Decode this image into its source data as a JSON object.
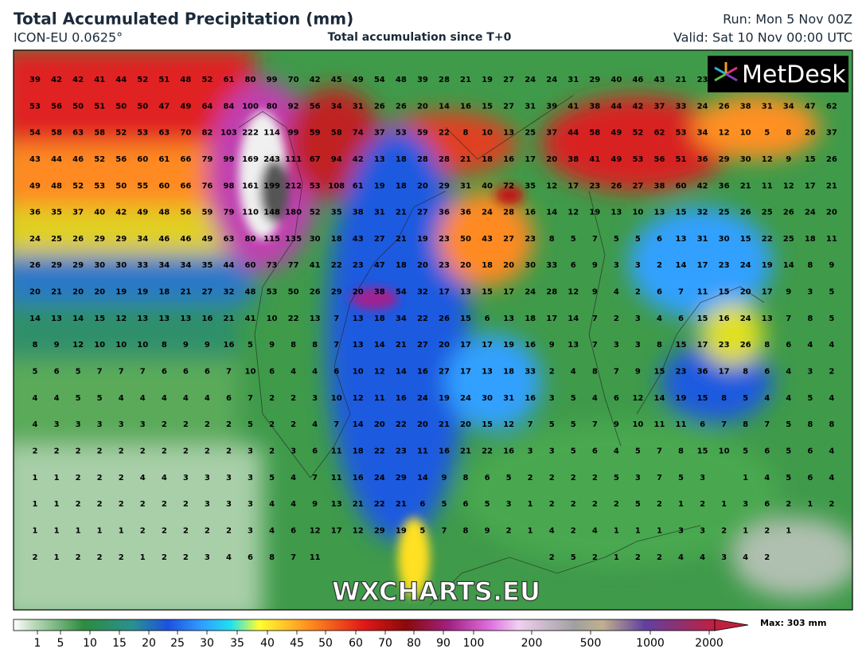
{
  "header": {
    "title": "Total Accumulated Precipitation (mm)",
    "model": "ICON-EU 0.0625°",
    "subtitle": "Total accumulation since T+0",
    "run": "Run: Mon 5 Nov 00Z",
    "valid": "Valid: Sat 10 Nov 00:00 UTC"
  },
  "logo": "MetDesk",
  "watermark": "WXCHARTS.EU",
  "colorbar": {
    "labels": [
      1,
      5,
      10,
      15,
      20,
      25,
      30,
      35,
      40,
      45,
      50,
      60,
      70,
      80,
      90,
      100,
      200,
      500,
      1000,
      2000
    ],
    "max_label": "Max: 303 mm"
  },
  "grid_values": [
    [
      39,
      42,
      42,
      41,
      44,
      52,
      51,
      48,
      52,
      61,
      80,
      99,
      70,
      42,
      45,
      49,
      54,
      48,
      39,
      28,
      21,
      19,
      27,
      24,
      24,
      31,
      29,
      40,
      46,
      43,
      21,
      23,
      null,
      null,
      null,
      null,
      null,
      null
    ],
    [
      53,
      56,
      50,
      51,
      50,
      50,
      47,
      49,
      64,
      84,
      100,
      80,
      92,
      56,
      34,
      31,
      26,
      26,
      20,
      14,
      16,
      15,
      27,
      31,
      39,
      41,
      38,
      44,
      42,
      37,
      33,
      24,
      26,
      38,
      31,
      34,
      47,
      62
    ],
    [
      54,
      58,
      63,
      58,
      52,
      53,
      63,
      70,
      82,
      103,
      222,
      114,
      99,
      59,
      58,
      74,
      37,
      53,
      59,
      22,
      8,
      10,
      13,
      25,
      37,
      44,
      58,
      49,
      52,
      62,
      53,
      34,
      12,
      10,
      5,
      8,
      26,
      37
    ],
    [
      43,
      44,
      46,
      52,
      56,
      60,
      61,
      66,
      79,
      99,
      169,
      243,
      111,
      67,
      94,
      42,
      13,
      18,
      28,
      28,
      21,
      18,
      16,
      17,
      20,
      38,
      41,
      49,
      53,
      56,
      51,
      36,
      29,
      30,
      12,
      9,
      15,
      26
    ],
    [
      49,
      48,
      52,
      53,
      50,
      55,
      60,
      66,
      76,
      98,
      161,
      199,
      212,
      53,
      108,
      61,
      19,
      18,
      20,
      29,
      31,
      40,
      72,
      35,
      12,
      17,
      23,
      26,
      27,
      38,
      60,
      42,
      36,
      21,
      11,
      12,
      17,
      21
    ],
    [
      36,
      35,
      37,
      40,
      42,
      49,
      48,
      56,
      59,
      79,
      110,
      148,
      180,
      52,
      35,
      38,
      31,
      21,
      27,
      36,
      36,
      24,
      28,
      16,
      14,
      12,
      19,
      13,
      10,
      13,
      15,
      32,
      25,
      26,
      25,
      26,
      24,
      20
    ],
    [
      24,
      25,
      26,
      29,
      29,
      34,
      46,
      46,
      49,
      63,
      80,
      115,
      135,
      30,
      18,
      43,
      27,
      21,
      19,
      23,
      50,
      43,
      27,
      23,
      8,
      5,
      7,
      5,
      5,
      6,
      13,
      31,
      30,
      15,
      22,
      25,
      18,
      11
    ],
    [
      26,
      29,
      29,
      30,
      30,
      33,
      34,
      34,
      35,
      44,
      60,
      73,
      77,
      41,
      22,
      23,
      47,
      18,
      20,
      23,
      20,
      18,
      20,
      30,
      33,
      6,
      9,
      3,
      3,
      2,
      14,
      17,
      23,
      24,
      19,
      14,
      8,
      9
    ],
    [
      20,
      21,
      20,
      20,
      19,
      19,
      18,
      21,
      27,
      32,
      48,
      53,
      50,
      26,
      29,
      20,
      38,
      54,
      32,
      17,
      13,
      15,
      17,
      24,
      28,
      12,
      9,
      4,
      2,
      6,
      7,
      11,
      15,
      20,
      17,
      9,
      3,
      5
    ],
    [
      14,
      13,
      14,
      15,
      12,
      13,
      13,
      13,
      16,
      21,
      41,
      10,
      22,
      13,
      7,
      13,
      18,
      34,
      22,
      26,
      15,
      6,
      13,
      18,
      17,
      14,
      7,
      2,
      3,
      4,
      6,
      15,
      16,
      24,
      13,
      7,
      8,
      5
    ],
    [
      8,
      9,
      12,
      10,
      10,
      10,
      8,
      9,
      9,
      16,
      5,
      9,
      8,
      8,
      7,
      13,
      14,
      21,
      27,
      20,
      17,
      17,
      19,
      16,
      9,
      13,
      7,
      3,
      3,
      8,
      15,
      17,
      23,
      26,
      8,
      6,
      4,
      4
    ],
    [
      5,
      6,
      5,
      7,
      7,
      7,
      6,
      6,
      6,
      7,
      10,
      6,
      4,
      4,
      6,
      10,
      12,
      14,
      16,
      27,
      17,
      13,
      18,
      33,
      2,
      4,
      8,
      7,
      9,
      15,
      23,
      36,
      17,
      8,
      6,
      4,
      3,
      2
    ],
    [
      4,
      4,
      5,
      5,
      4,
      4,
      4,
      4,
      4,
      6,
      7,
      2,
      2,
      3,
      10,
      12,
      11,
      16,
      24,
      19,
      24,
      30,
      31,
      16,
      3,
      5,
      4,
      6,
      12,
      14,
      19,
      15,
      8,
      5,
      4,
      4,
      5,
      4
    ],
    [
      4,
      3,
      3,
      3,
      3,
      3,
      2,
      2,
      2,
      2,
      5,
      2,
      2,
      4,
      7,
      14,
      20,
      22,
      20,
      21,
      20,
      15,
      12,
      7,
      5,
      5,
      7,
      9,
      10,
      11,
      11,
      6,
      7,
      8,
      7,
      5,
      8,
      8
    ],
    [
      2,
      2,
      2,
      2,
      2,
      2,
      2,
      2,
      2,
      2,
      3,
      2,
      3,
      6,
      11,
      18,
      22,
      23,
      11,
      16,
      21,
      22,
      16,
      3,
      3,
      5,
      6,
      4,
      5,
      7,
      8,
      15,
      10,
      5,
      6,
      5,
      6,
      4
    ],
    [
      1,
      1,
      2,
      2,
      2,
      4,
      4,
      3,
      3,
      3,
      3,
      5,
      4,
      7,
      11,
      16,
      24,
      29,
      14,
      9,
      8,
      6,
      5,
      2,
      2,
      2,
      2,
      5,
      3,
      7,
      5,
      3,
      null,
      1,
      4,
      5,
      6,
      4
    ],
    [
      1,
      1,
      2,
      2,
      2,
      2,
      2,
      2,
      3,
      3,
      3,
      4,
      4,
      9,
      13,
      21,
      22,
      21,
      6,
      5,
      6,
      5,
      3,
      1,
      2,
      2,
      2,
      2,
      5,
      2,
      1,
      2,
      1,
      3,
      6,
      2,
      1,
      2
    ],
    [
      1,
      1,
      1,
      1,
      1,
      2,
      2,
      2,
      2,
      2,
      3,
      4,
      6,
      12,
      17,
      12,
      29,
      19,
      5,
      7,
      8,
      9,
      2,
      1,
      4,
      2,
      4,
      1,
      1,
      1,
      3,
      3,
      2,
      1,
      2,
      1,
      null,
      null
    ],
    [
      2,
      1,
      2,
      2,
      2,
      1,
      2,
      2,
      3,
      4,
      6,
      8,
      7,
      11,
      null,
      null,
      null,
      null,
      null,
      null,
      null,
      null,
      null,
      null,
      2,
      5,
      2,
      1,
      2,
      2,
      4,
      4,
      3,
      4,
      2,
      null,
      null,
      null
    ]
  ]
}
